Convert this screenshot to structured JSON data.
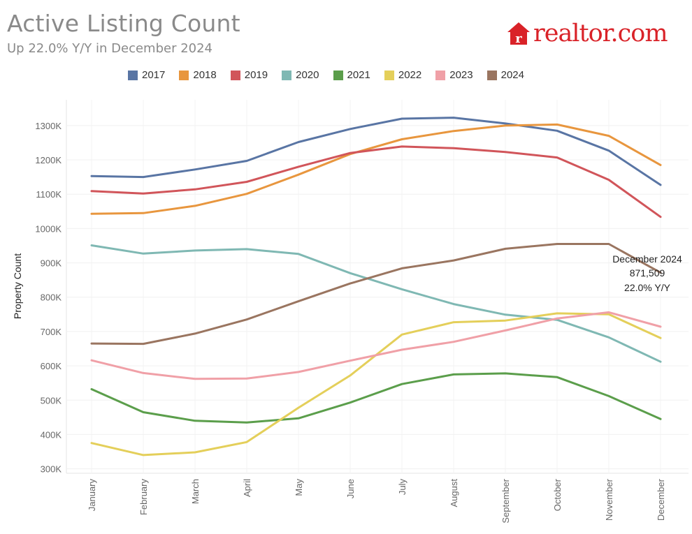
{
  "header": {
    "title": "Active Listing Count",
    "subtitle": "Up 22.0% Y/Y in December 2024",
    "logo_text": "realtor.com"
  },
  "colors": {
    "2017": "#5975a4",
    "2018": "#e8963e",
    "2019": "#d1555a",
    "2020": "#7fb8b3",
    "2021": "#5b9e4b",
    "2022": "#e4cf5a",
    "2023": "#f0a0a7",
    "2024": "#9a7560",
    "logo": "#d92228"
  },
  "annotation": {
    "line1": "December 2024",
    "line2": "871,509",
    "line3": "22.0% Y/Y"
  },
  "chart_data": {
    "type": "line",
    "title": "Active Listing Count",
    "subtitle": "Up 22.0% Y/Y in December 2024",
    "xlabel": "",
    "ylabel": "Property Count",
    "categories": [
      "January",
      "February",
      "March",
      "April",
      "May",
      "June",
      "July",
      "August",
      "September",
      "October",
      "November",
      "December"
    ],
    "y_ticks": [
      300000,
      400000,
      500000,
      600000,
      700000,
      800000,
      900000,
      1000000,
      1100000,
      1200000,
      1300000
    ],
    "y_tick_labels": [
      "300K",
      "400K",
      "500K",
      "600K",
      "700K",
      "800K",
      "900K",
      "1000K",
      "1100K",
      "1200K",
      "1300K"
    ],
    "ylim": [
      287000,
      1375000
    ],
    "grid": true,
    "legend_position": "top",
    "series": [
      {
        "name": "2017",
        "values": [
          1153000,
          1150000,
          1172000,
          1197000,
          1252000,
          1290000,
          1320000,
          1323000,
          1306000,
          1285000,
          1227000,
          1127000
        ]
      },
      {
        "name": "2018",
        "values": [
          1043000,
          1045000,
          1066000,
          1101000,
          1157000,
          1217000,
          1260000,
          1284000,
          1300000,
          1303000,
          1270000,
          1185000
        ]
      },
      {
        "name": "2019",
        "values": [
          1109000,
          1102000,
          1114000,
          1136000,
          1180000,
          1220000,
          1239000,
          1234000,
          1223000,
          1207000,
          1142000,
          1034000
        ]
      },
      {
        "name": "2020",
        "values": [
          951000,
          927000,
          936000,
          940000,
          926000,
          870000,
          823000,
          780000,
          749000,
          734000,
          683000,
          612000
        ]
      },
      {
        "name": "2021",
        "values": [
          532000,
          465000,
          440000,
          435000,
          447000,
          493000,
          547000,
          575000,
          578000,
          567000,
          512000,
          445000
        ]
      },
      {
        "name": "2022",
        "values": [
          375000,
          340000,
          348000,
          378000,
          478000,
          572000,
          691000,
          727000,
          732000,
          753000,
          750000,
          681000
        ]
      },
      {
        "name": "2023",
        "values": [
          616000,
          579000,
          562000,
          563000,
          582000,
          615000,
          647000,
          670000,
          703000,
          738000,
          756000,
          714000
        ]
      },
      {
        "name": "2024",
        "values": [
          665000,
          664000,
          694000,
          735000,
          788000,
          840000,
          884000,
          907000,
          941000,
          955000,
          955000,
          871509
        ]
      }
    ]
  }
}
